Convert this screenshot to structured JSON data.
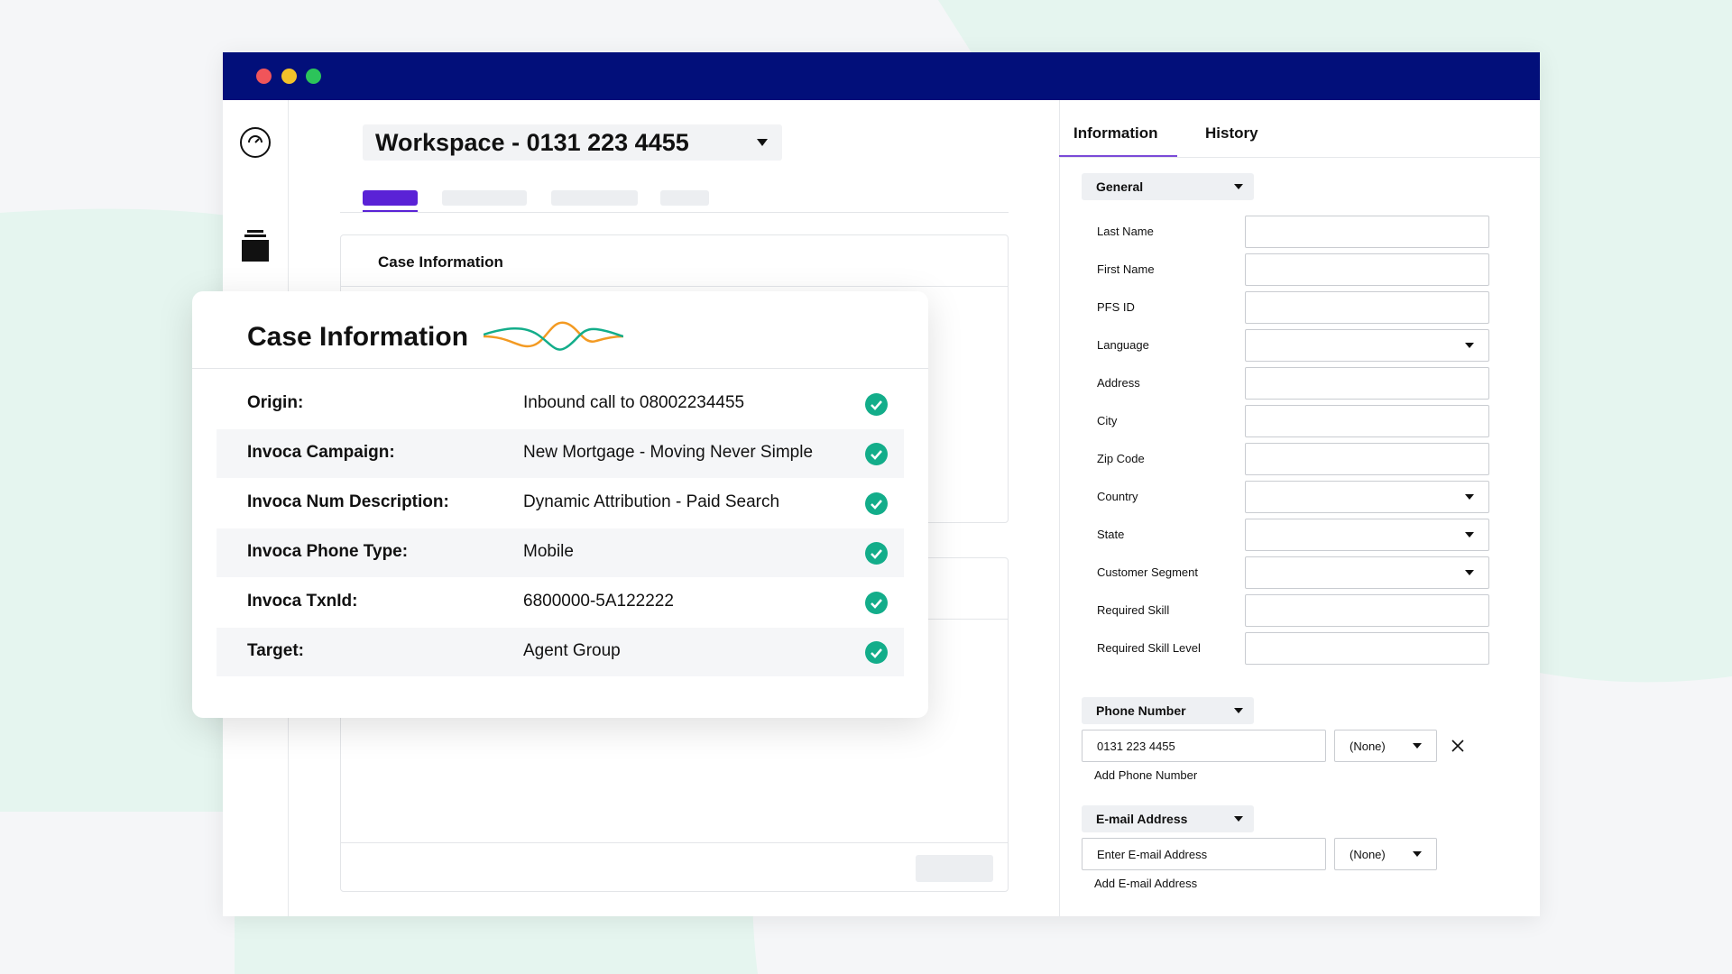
{
  "workspace": {
    "title": "Workspace - 0131 223 4455"
  },
  "case_panel": {
    "title": "Case Information"
  },
  "case_card": {
    "title": "Case Information",
    "rows": [
      {
        "label": "Origin:",
        "value": "Inbound call to 08002234455"
      },
      {
        "label": "Invoca Campaign:",
        "value": "New Mortgage - Moving Never Simple"
      },
      {
        "label": "Invoca Num Description:",
        "value": "Dynamic Attribution - Paid Search"
      },
      {
        "label": "Invoca Phone Type:",
        "value": "Mobile"
      },
      {
        "label": "Invoca TxnId:",
        "value": "6800000-5A122222"
      },
      {
        "label": "Target:",
        "value": "Agent Group"
      }
    ]
  },
  "side_panel": {
    "tabs": [
      "Information",
      "History"
    ],
    "general": {
      "title": "General",
      "fields": [
        {
          "label": "Last Name",
          "type": "text"
        },
        {
          "label": "First Name",
          "type": "text"
        },
        {
          "label": "PFS ID",
          "type": "text"
        },
        {
          "label": "Language",
          "type": "select"
        },
        {
          "label": "Address",
          "type": "text"
        },
        {
          "label": "City",
          "type": "text"
        },
        {
          "label": "Zip Code",
          "type": "text"
        },
        {
          "label": "Country",
          "type": "select"
        },
        {
          "label": "State",
          "type": "select"
        },
        {
          "label": "Customer Segment",
          "type": "select"
        },
        {
          "label": "Required Skill",
          "type": "text"
        },
        {
          "label": "Required Skill Level",
          "type": "text"
        }
      ]
    },
    "phone": {
      "title": "Phone Number",
      "value": "0131 223 4455",
      "type_select": "(None)",
      "add": "Add Phone Number"
    },
    "email": {
      "title": "E-mail Address",
      "placeholder": "Enter E-mail Address",
      "type_select": "(None)",
      "add": "Add E-mail Address"
    }
  }
}
